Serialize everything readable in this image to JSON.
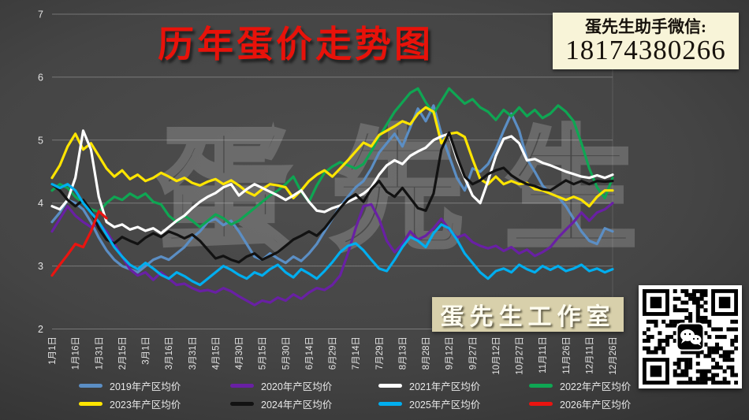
{
  "title": "历年蛋价走势图",
  "contact": {
    "line1": "蛋先生助手微信:",
    "line2": "18174380266"
  },
  "badge": "蛋先生工作室",
  "watermark": "蛋先生",
  "colors": {
    "background": "#454545",
    "title_red": "#e8120a",
    "contact_bg": "#f8f4d8",
    "badge_bg": "#d8d0ab",
    "gridline": "rgba(255,255,255,0.28)",
    "axis_text": "#e3e3e3"
  },
  "chart_data": {
    "type": "line",
    "title": "历年蛋价走势图",
    "xlabel": "",
    "ylabel": "",
    "ylim": [
      2,
      7
    ],
    "y_ticks": [
      2,
      3,
      4,
      5,
      6,
      7
    ],
    "grid": true,
    "legend_position": "bottom",
    "x_tick_interval_days": 15,
    "x_tick_labels": [
      "1月1日",
      "1月16日",
      "1月31日",
      "2月15日",
      "3月1日",
      "3月16日",
      "3月31日",
      "4月15日",
      "4月30日",
      "5月15日",
      "5月30日",
      "6月14日",
      "6月29日",
      "7月14日",
      "7月29日",
      "8月13日",
      "8月28日",
      "9月12日",
      "9月27日",
      "10月12日",
      "10月27日",
      "11月11日",
      "11月26日",
      "12月11日",
      "12月26日"
    ],
    "x_days": [
      0,
      5,
      10,
      15,
      20,
      25,
      30,
      35,
      40,
      45,
      50,
      55,
      60,
      65,
      70,
      75,
      80,
      85,
      90,
      95,
      100,
      105,
      110,
      115,
      120,
      125,
      130,
      135,
      140,
      145,
      150,
      155,
      160,
      165,
      170,
      175,
      180,
      185,
      190,
      195,
      200,
      205,
      210,
      215,
      220,
      225,
      230,
      235,
      240,
      245,
      250,
      255,
      260,
      265,
      270,
      275,
      280,
      285,
      290,
      295,
      300,
      305,
      310,
      315,
      320,
      325,
      330,
      335,
      340,
      345,
      350,
      355,
      360
    ],
    "series": [
      {
        "name": "2019年产区均价",
        "color": "#5b8ec4",
        "values": [
          3.7,
          3.85,
          4.05,
          4.0,
          3.9,
          3.7,
          3.45,
          3.25,
          3.1,
          3.0,
          2.95,
          2.9,
          3.0,
          3.1,
          3.15,
          3.1,
          3.2,
          3.3,
          3.45,
          3.55,
          3.7,
          3.75,
          3.65,
          3.72,
          3.55,
          3.35,
          3.15,
          3.1,
          3.2,
          3.12,
          3.05,
          3.15,
          3.08,
          3.2,
          3.35,
          3.55,
          3.75,
          3.95,
          4.1,
          4.25,
          4.35,
          4.55,
          4.8,
          4.95,
          5.1,
          4.9,
          5.2,
          5.5,
          5.3,
          5.55,
          5.1,
          4.75,
          4.4,
          4.2,
          4.55,
          4.5,
          4.62,
          4.85,
          5.15,
          5.42,
          5.15,
          4.7,
          4.5,
          4.28,
          4.15,
          4.1,
          3.95,
          3.75,
          3.55,
          3.4,
          3.35,
          3.6,
          3.55
        ]
      },
      {
        "name": "2020年产区均价",
        "color": "#6920a4",
        "values": [
          3.55,
          3.75,
          3.95,
          3.8,
          3.7,
          3.62,
          3.68,
          3.55,
          3.35,
          3.15,
          2.95,
          2.85,
          2.9,
          2.78,
          2.9,
          2.8,
          2.7,
          2.72,
          2.65,
          2.6,
          2.62,
          2.58,
          2.65,
          2.6,
          2.52,
          2.45,
          2.38,
          2.45,
          2.42,
          2.5,
          2.45,
          2.55,
          2.48,
          2.58,
          2.65,
          2.62,
          2.7,
          2.85,
          3.2,
          3.6,
          3.95,
          3.98,
          3.75,
          3.4,
          3.22,
          3.35,
          3.55,
          3.42,
          3.48,
          3.6,
          3.75,
          3.58,
          3.45,
          3.5,
          3.38,
          3.32,
          3.28,
          3.32,
          3.24,
          3.3,
          3.2,
          3.26,
          3.16,
          3.22,
          3.3,
          3.45,
          3.58,
          3.7,
          3.85,
          3.72,
          3.85,
          3.9,
          4.0
        ]
      },
      {
        "name": "2021年产区均价",
        "color": "#ffffff",
        "values": [
          3.95,
          3.9,
          4.05,
          4.4,
          5.15,
          4.85,
          4.1,
          3.7,
          3.62,
          3.66,
          3.58,
          3.62,
          3.56,
          3.6,
          3.52,
          3.62,
          3.72,
          3.8,
          3.92,
          4.02,
          4.1,
          4.16,
          4.25,
          4.3,
          4.12,
          4.22,
          4.3,
          4.24,
          4.18,
          4.12,
          4.05,
          4.12,
          4.2,
          4.02,
          3.88,
          3.86,
          3.92,
          3.96,
          4.02,
          4.08,
          4.15,
          4.25,
          4.45,
          4.6,
          4.68,
          4.62,
          4.75,
          4.82,
          4.88,
          5.0,
          5.06,
          5.1,
          4.7,
          4.4,
          4.12,
          4.0,
          4.35,
          4.75,
          5.02,
          5.06,
          4.95,
          4.68,
          4.7,
          4.64,
          4.6,
          4.55,
          4.5,
          4.46,
          4.42,
          4.4,
          4.44,
          4.4,
          4.45
        ]
      },
      {
        "name": "2022年产区均价",
        "color": "#0fa653",
        "values": [
          4.2,
          4.3,
          4.24,
          4.1,
          4.0,
          3.9,
          3.86,
          4.0,
          4.1,
          4.05,
          4.15,
          4.08,
          4.15,
          4.02,
          3.98,
          3.8,
          3.7,
          3.8,
          3.72,
          3.62,
          3.72,
          3.82,
          3.76,
          3.66,
          3.72,
          3.82,
          3.92,
          4.02,
          4.12,
          4.2,
          4.3,
          4.42,
          4.18,
          4.02,
          4.28,
          4.48,
          4.58,
          4.65,
          4.6,
          4.55,
          4.62,
          4.82,
          5.05,
          5.25,
          5.45,
          5.6,
          5.75,
          5.82,
          5.6,
          5.42,
          5.62,
          5.82,
          5.7,
          5.58,
          5.65,
          5.52,
          5.45,
          5.32,
          5.48,
          5.38,
          5.52,
          5.38,
          5.48,
          5.35,
          5.42,
          5.55,
          5.45,
          5.3,
          4.95,
          4.55,
          4.25,
          4.08,
          4.4
        ]
      },
      {
        "name": "2023年产区均价",
        "color": "#ffe500",
        "values": [
          4.4,
          4.6,
          4.9,
          5.1,
          4.85,
          4.95,
          4.75,
          4.55,
          4.42,
          4.52,
          4.38,
          4.45,
          4.35,
          4.4,
          4.48,
          4.42,
          4.35,
          4.4,
          4.32,
          4.28,
          4.34,
          4.38,
          4.3,
          4.36,
          4.28,
          4.18,
          4.12,
          4.22,
          4.3,
          4.28,
          4.25,
          4.08,
          4.2,
          4.35,
          4.45,
          4.52,
          4.42,
          4.55,
          4.68,
          4.82,
          4.96,
          4.9,
          5.08,
          5.15,
          5.22,
          5.3,
          5.25,
          5.42,
          5.52,
          5.45,
          4.95,
          5.1,
          5.12,
          5.05,
          4.7,
          4.38,
          4.3,
          4.42,
          4.3,
          4.35,
          4.3,
          4.32,
          4.22,
          4.2,
          4.15,
          4.1,
          4.05,
          4.1,
          4.05,
          3.95,
          4.1,
          4.2,
          4.2
        ]
      },
      {
        "name": "2024年产区均价",
        "color": "#121212",
        "values": [
          4.3,
          4.2,
          4.05,
          3.95,
          4.05,
          3.88,
          3.6,
          3.42,
          3.36,
          3.46,
          3.4,
          3.35,
          3.45,
          3.52,
          3.46,
          3.55,
          3.5,
          3.44,
          3.5,
          3.4,
          3.26,
          3.12,
          3.16,
          3.1,
          3.06,
          3.15,
          3.2,
          3.1,
          3.16,
          3.22,
          3.32,
          3.42,
          3.48,
          3.55,
          3.48,
          3.6,
          3.76,
          3.92,
          4.06,
          4.14,
          4.02,
          4.22,
          4.35,
          4.18,
          4.1,
          4.24,
          4.08,
          3.92,
          3.88,
          4.15,
          4.85,
          5.12,
          4.75,
          4.42,
          4.3,
          4.36,
          4.46,
          4.52,
          4.56,
          4.44,
          4.36,
          4.3,
          4.27,
          4.22,
          4.2,
          4.28,
          4.36,
          4.3,
          4.35,
          4.3,
          4.35,
          4.34,
          4.35
        ]
      },
      {
        "name": "2025年产区均价",
        "color": "#00aeef",
        "values": [
          4.3,
          4.24,
          4.3,
          4.2,
          4.0,
          3.85,
          3.7,
          3.5,
          3.3,
          3.15,
          3.02,
          2.95,
          3.05,
          2.96,
          2.86,
          2.8,
          2.9,
          2.84,
          2.76,
          2.7,
          2.8,
          2.9,
          3.0,
          2.94,
          2.86,
          2.8,
          2.9,
          2.85,
          2.95,
          3.02,
          2.9,
          2.82,
          2.95,
          2.88,
          2.8,
          2.92,
          3.06,
          3.22,
          3.32,
          3.36,
          3.25,
          3.1,
          2.96,
          2.92,
          3.1,
          3.3,
          3.46,
          3.4,
          3.3,
          3.52,
          3.66,
          3.6,
          3.42,
          3.2,
          3.05,
          2.9,
          2.8,
          2.92,
          2.96,
          2.9,
          3.02,
          2.95,
          2.9,
          3.0,
          2.94,
          3.0,
          2.92,
          2.96,
          3.02,
          2.92,
          2.96,
          2.9,
          2.95
        ]
      },
      {
        "name": "2026年产区均价",
        "color": "#ea1410",
        "values": [
          2.85,
          3.02,
          3.18,
          3.35,
          3.3,
          3.55,
          3.87,
          3.76,
          null,
          null,
          null,
          null,
          null,
          null,
          null,
          null,
          null,
          null,
          null,
          null,
          null,
          null,
          null,
          null,
          null,
          null,
          null,
          null,
          null,
          null,
          null,
          null,
          null,
          null,
          null,
          null,
          null,
          null,
          null,
          null,
          null,
          null,
          null,
          null,
          null,
          null,
          null,
          null,
          null,
          null,
          null,
          null,
          null,
          null,
          null,
          null,
          null,
          null,
          null,
          null,
          null,
          null,
          null,
          null,
          null,
          null,
          null,
          null,
          null,
          null,
          null,
          null,
          null
        ]
      }
    ]
  }
}
